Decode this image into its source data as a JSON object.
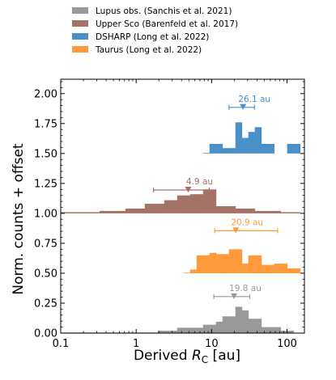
{
  "chart_data": {
    "type": "bar",
    "xscale": "log",
    "xlim": [
      0.1,
      170
    ],
    "ylim": [
      0.0,
      2.12
    ],
    "xlabel_prefix": "Derived ",
    "xlabel_symbol": "R",
    "xlabel_sub": "C",
    "xlabel_suffix": " [au]",
    "ylabel": "Norm. counts + offset",
    "xticks": [
      {
        "value": 0.1,
        "label": "0.1"
      },
      {
        "value": 1,
        "label": "1"
      },
      {
        "value": 10,
        "label": "10"
      },
      {
        "value": 100,
        "label": "100"
      }
    ],
    "yticks": [
      {
        "value": 0.0,
        "label": "0.00"
      },
      {
        "value": 0.25,
        "label": "0.25"
      },
      {
        "value": 0.5,
        "label": "0.50"
      },
      {
        "value": 0.75,
        "label": "0.75"
      },
      {
        "value": 1.0,
        "label": "1.00"
      },
      {
        "value": 1.25,
        "label": "1.25"
      },
      {
        "value": 1.5,
        "label": "1.50"
      },
      {
        "value": 1.75,
        "label": "1.75"
      },
      {
        "value": 2.0,
        "label": "2.00"
      }
    ],
    "bin_edges": [
      0.1,
      0.122,
      0.148,
      0.181,
      0.22,
      0.268,
      0.327,
      0.398,
      0.485,
      0.591,
      0.72,
      0.877,
      1.069,
      1.302,
      1.586,
      1.933,
      2.355,
      2.869,
      3.495,
      4.258,
      5.188,
      6.321,
      7.701,
      9.382,
      11.43,
      13.93,
      16.97,
      20.67,
      25.19,
      30.69,
      37.39,
      45.55,
      55.5,
      67.61,
      82.37,
      100.4,
      122.3,
      149.0
    ],
    "series": [
      {
        "name": "Lupus obs. (Sanchis et al. 2021)",
        "color": "#999999",
        "offset": 0.0,
        "values": [
          0.005,
          0.005,
          0.005,
          0.005,
          0.005,
          0.005,
          0.005,
          0.005,
          0.005,
          0.005,
          0.005,
          0.005,
          0.005,
          0.005,
          0.005,
          0.02,
          0.02,
          0.02,
          0.045,
          0.045,
          0.045,
          0.045,
          0.07,
          0.07,
          0.095,
          0.14,
          0.14,
          0.22,
          0.19,
          0.12,
          0.12,
          0.05,
          0.05,
          0.05,
          0.02,
          0.02,
          0.0
        ],
        "annotation": {
          "median": 19.8,
          "lo": 10.7,
          "hi": 32.0,
          "y": 0.305,
          "label": "19.8 au"
        }
      },
      {
        "name": "Upper Sco (Barenfeld et al. 2017)",
        "color": "#a57267",
        "offset": 1.0,
        "values": [
          0.01,
          0.01,
          0.01,
          0.01,
          0.01,
          0.01,
          0.02,
          0.02,
          0.02,
          0.02,
          0.04,
          0.04,
          0.04,
          0.08,
          0.08,
          0.08,
          0.11,
          0.11,
          0.15,
          0.15,
          0.16,
          0.16,
          0.2,
          0.2,
          0.06,
          0.06,
          0.06,
          0.04,
          0.04,
          0.04,
          0.02,
          0.02,
          0.02,
          0.02,
          0.01,
          0.01,
          0.01
        ],
        "annotation": {
          "median": 4.9,
          "lo": 1.7,
          "hi": 9.3,
          "y": 1.195,
          "label": "4.9 au"
        }
      },
      {
        "name": "DSHARP (Long et al. 2022)",
        "color": "#4a90c8",
        "offset": 1.5,
        "values": [
          0,
          0,
          0,
          0,
          0,
          0,
          0,
          0,
          0,
          0,
          0,
          0,
          0,
          0,
          0,
          0,
          0,
          0,
          0,
          0,
          0,
          0,
          0.005,
          0.08,
          0.08,
          0.045,
          0.045,
          0.26,
          0.13,
          0.18,
          0.22,
          0.08,
          0.08,
          0,
          0,
          0.08,
          0.08
        ],
        "annotation": {
          "median": 26.1,
          "lo": 17.0,
          "hi": 37.0,
          "y": 1.885,
          "label": "26.1 au"
        }
      },
      {
        "name": "Taurus (Long et al. 2022)",
        "color": "#ff9a3c",
        "offset": 0.5,
        "values": [
          0,
          0,
          0,
          0,
          0,
          0,
          0,
          0,
          0,
          0,
          0,
          0,
          0,
          0,
          0,
          0,
          0,
          0,
          0,
          0.005,
          0.03,
          0.15,
          0.15,
          0.17,
          0.16,
          0.16,
          0.2,
          0.2,
          0.08,
          0.15,
          0.15,
          0.07,
          0.07,
          0.08,
          0.08,
          0.04,
          0.04
        ],
        "annotation": {
          "median": 20.9,
          "lo": 11.0,
          "hi": 75.0,
          "y": 0.855,
          "label": "20.9 au"
        }
      }
    ],
    "legend_order": [
      0,
      1,
      2,
      3
    ],
    "legend_position": "top"
  }
}
